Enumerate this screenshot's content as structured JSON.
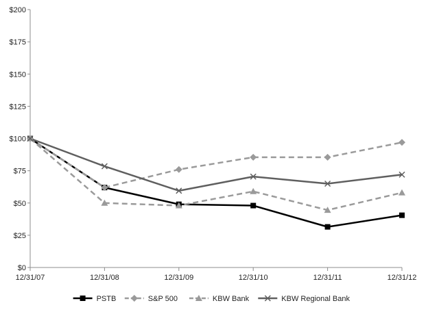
{
  "chart_data": {
    "type": "line",
    "title": "",
    "xlabel": "",
    "ylabel": "",
    "categories": [
      "12/31/07",
      "12/31/08",
      "12/31/09",
      "12/31/10",
      "12/31/11",
      "12/31/12"
    ],
    "y_ticks": [
      "$0",
      "$25",
      "$50",
      "$75",
      "$100",
      "$125",
      "$150",
      "$175",
      "$200"
    ],
    "ylim": [
      0,
      200
    ],
    "grid": false,
    "legend_position": "bottom",
    "series": [
      {
        "name": "PSTB",
        "values": [
          100,
          62,
          49,
          48,
          31.5,
          40.5
        ],
        "color": "#000000",
        "dash": "solid",
        "marker": "square"
      },
      {
        "name": "S&P 500",
        "values": [
          100,
          62,
          76,
          85.5,
          85.5,
          97
        ],
        "color": "#9a9a9a",
        "dash": "dashed",
        "marker": "diamond"
      },
      {
        "name": "KBW Bank",
        "values": [
          100,
          50,
          48,
          59,
          44.5,
          58
        ],
        "color": "#9a9a9a",
        "dash": "dashed",
        "marker": "triangle"
      },
      {
        "name": "KBW Regional Bank",
        "values": [
          100,
          78.5,
          59.5,
          70.5,
          65,
          72
        ],
        "color": "#5f5f5f",
        "dash": "solid",
        "marker": "x"
      }
    ]
  }
}
